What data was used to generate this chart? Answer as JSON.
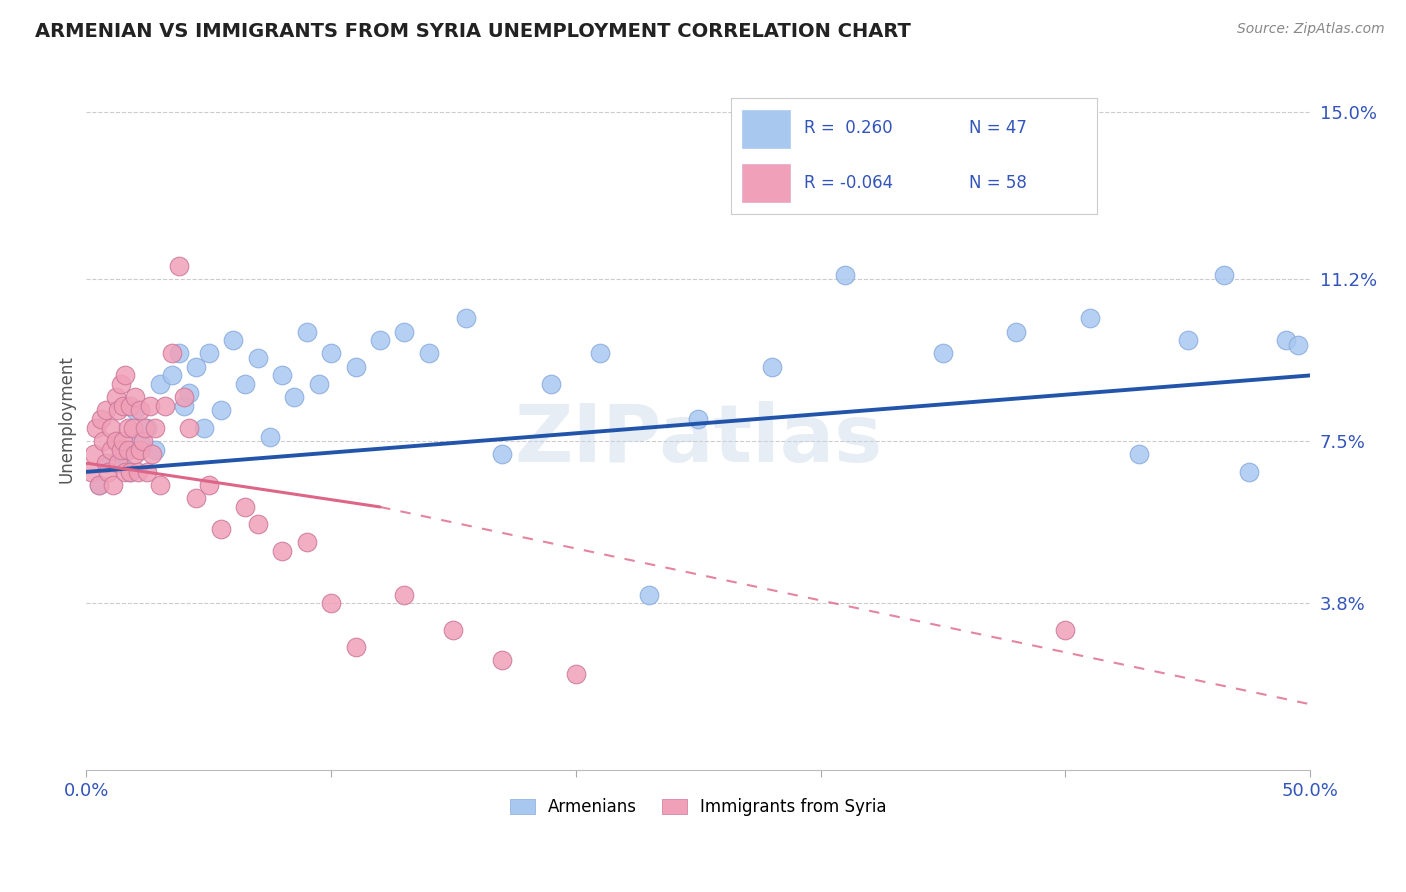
{
  "title": "ARMENIAN VS IMMIGRANTS FROM SYRIA UNEMPLOYMENT CORRELATION CHART",
  "source": "Source: ZipAtlas.com",
  "ylabel": "Unemployment",
  "xlim": [
    0.0,
    0.5
  ],
  "ylim": [
    0.0,
    0.16
  ],
  "yticks": [
    0.038,
    0.075,
    0.112,
    0.15
  ],
  "ytick_labels": [
    "3.8%",
    "7.5%",
    "11.2%",
    "15.0%"
  ],
  "xtick_labels_ends": [
    "0.0%",
    "50.0%"
  ],
  "blue_R": 0.26,
  "blue_N": 47,
  "pink_R": -0.064,
  "pink_N": 58,
  "blue_color": "#a8c8f0",
  "pink_color": "#f0a0b8",
  "blue_line_color": "#2255aa",
  "pink_line_color": "#dd6688",
  "legend_blue_label": "Armenians",
  "legend_pink_label": "Immigrants from Syria",
  "watermark": "ZIPatlas",
  "blue_x": [
    0.005,
    0.01,
    0.015,
    0.018,
    0.02,
    0.022,
    0.025,
    0.028,
    0.03,
    0.035,
    0.038,
    0.04,
    0.042,
    0.045,
    0.048,
    0.05,
    0.055,
    0.06,
    0.065,
    0.07,
    0.075,
    0.08,
    0.085,
    0.09,
    0.095,
    0.1,
    0.11,
    0.12,
    0.13,
    0.14,
    0.155,
    0.17,
    0.19,
    0.21,
    0.23,
    0.25,
    0.28,
    0.31,
    0.35,
    0.38,
    0.41,
    0.43,
    0.45,
    0.465,
    0.475,
    0.49,
    0.495
  ],
  "blue_y": [
    0.065,
    0.07,
    0.072,
    0.068,
    0.082,
    0.075,
    0.078,
    0.073,
    0.088,
    0.09,
    0.095,
    0.083,
    0.086,
    0.092,
    0.078,
    0.095,
    0.082,
    0.098,
    0.088,
    0.094,
    0.076,
    0.09,
    0.085,
    0.1,
    0.088,
    0.095,
    0.092,
    0.098,
    0.1,
    0.095,
    0.103,
    0.072,
    0.088,
    0.095,
    0.04,
    0.08,
    0.092,
    0.113,
    0.095,
    0.1,
    0.103,
    0.072,
    0.098,
    0.113,
    0.068,
    0.098,
    0.097
  ],
  "pink_x": [
    0.002,
    0.003,
    0.004,
    0.005,
    0.006,
    0.007,
    0.008,
    0.008,
    0.009,
    0.01,
    0.01,
    0.011,
    0.012,
    0.012,
    0.013,
    0.013,
    0.014,
    0.014,
    0.015,
    0.015,
    0.016,
    0.016,
    0.017,
    0.017,
    0.018,
    0.018,
    0.019,
    0.02,
    0.02,
    0.021,
    0.022,
    0.022,
    0.023,
    0.024,
    0.025,
    0.026,
    0.027,
    0.028,
    0.03,
    0.032,
    0.035,
    0.038,
    0.04,
    0.042,
    0.045,
    0.05,
    0.055,
    0.065,
    0.07,
    0.08,
    0.09,
    0.1,
    0.11,
    0.13,
    0.15,
    0.17,
    0.2,
    0.4
  ],
  "pink_y": [
    0.068,
    0.072,
    0.078,
    0.065,
    0.08,
    0.075,
    0.07,
    0.082,
    0.068,
    0.073,
    0.078,
    0.065,
    0.075,
    0.085,
    0.07,
    0.082,
    0.073,
    0.088,
    0.075,
    0.083,
    0.068,
    0.09,
    0.078,
    0.073,
    0.083,
    0.068,
    0.078,
    0.072,
    0.085,
    0.068,
    0.082,
    0.073,
    0.075,
    0.078,
    0.068,
    0.083,
    0.072,
    0.078,
    0.065,
    0.083,
    0.095,
    0.115,
    0.085,
    0.078,
    0.062,
    0.065,
    0.055,
    0.06,
    0.056,
    0.05,
    0.052,
    0.038,
    0.028,
    0.04,
    0.032,
    0.025,
    0.022,
    0.032
  ]
}
